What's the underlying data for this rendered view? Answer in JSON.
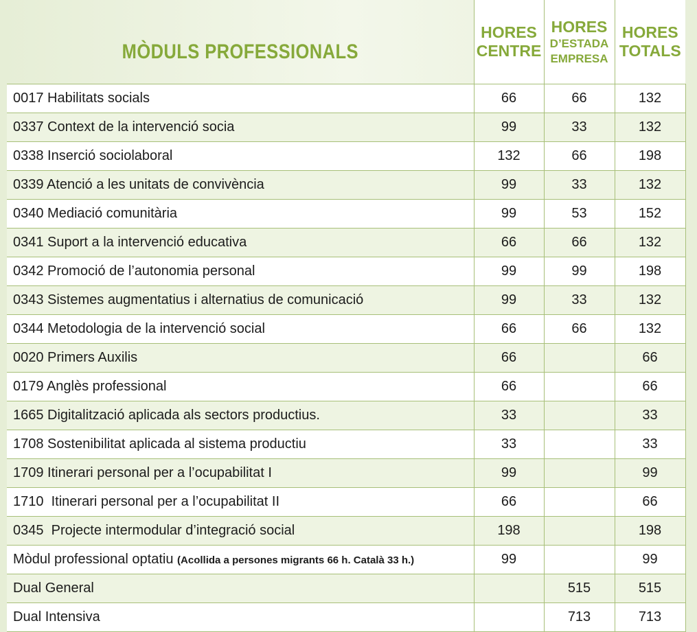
{
  "table": {
    "header": {
      "module": "MÒDULS PROFESSIONALS",
      "centre": [
        "HORES",
        "CENTRE"
      ],
      "empresa": [
        "HORES",
        "D’ESTADA",
        "EMPRESA"
      ],
      "total": [
        "HORES",
        "TOTALS"
      ]
    },
    "rows": [
      {
        "module": "0017 Habilitats socials",
        "centre": 66,
        "empresa": 66,
        "total": 132
      },
      {
        "module": "0337 Context de la intervenció socia",
        "centre": 99,
        "empresa": 33,
        "total": 132
      },
      {
        "module": "0338 Inserció sociolaboral",
        "centre": 132,
        "empresa": 66,
        "total": 198
      },
      {
        "module": "0339 Atenció a les unitats de convivència",
        "centre": 99,
        "empresa": 33,
        "total": 132
      },
      {
        "module": "0340 Mediació comunitària",
        "centre": 99,
        "empresa": 53,
        "total": 152
      },
      {
        "module": "0341 Suport a la intervenció educativa",
        "centre": 66,
        "empresa": 66,
        "total": 132
      },
      {
        "module": "0342 Promoció de l’autonomia personal",
        "centre": 99,
        "empresa": 99,
        "total": 198
      },
      {
        "module": "0343 Sistemes augmentatius i alternatius de comunicació",
        "centre": 99,
        "empresa": 33,
        "total": 132
      },
      {
        "module": "0344 Metodologia de la intervenció social",
        "centre": 66,
        "empresa": 66,
        "total": 132
      },
      {
        "module": "0020 Primers Auxilis",
        "centre": 66,
        "empresa": null,
        "total": 66
      },
      {
        "module": "0179 Anglès professional",
        "centre": 66,
        "empresa": null,
        "total": 66
      },
      {
        "module": "1665 Digitalització aplicada als sectors productius.",
        "centre": 33,
        "empresa": null,
        "total": 33
      },
      {
        "module": "1708 Sostenibilitat aplicada al sistema productiu",
        "centre": 33,
        "empresa": null,
        "total": 33
      },
      {
        "module": "1709 Itinerari personal per a l’ocupabilitat I",
        "centre": 99,
        "empresa": null,
        "total": 99
      },
      {
        "module": "1710  Itinerari personal per a l’ocupabilitat II",
        "centre": 66,
        "empresa": null,
        "total": 66
      },
      {
        "module": "0345  Projecte intermodular d’integració social",
        "centre": 198,
        "empresa": null,
        "total": 198
      },
      {
        "module": "Mòdul professional optatiu",
        "note": "(Acollida a persones migrants 66 h. Català 33 h.)",
        "centre": 99,
        "empresa": null,
        "total": 99
      },
      {
        "module": "Dual General",
        "centre": null,
        "empresa": 515,
        "total": 515
      },
      {
        "module": "Dual Intensiva",
        "centre": null,
        "empresa": 713,
        "total": 713
      }
    ]
  }
}
